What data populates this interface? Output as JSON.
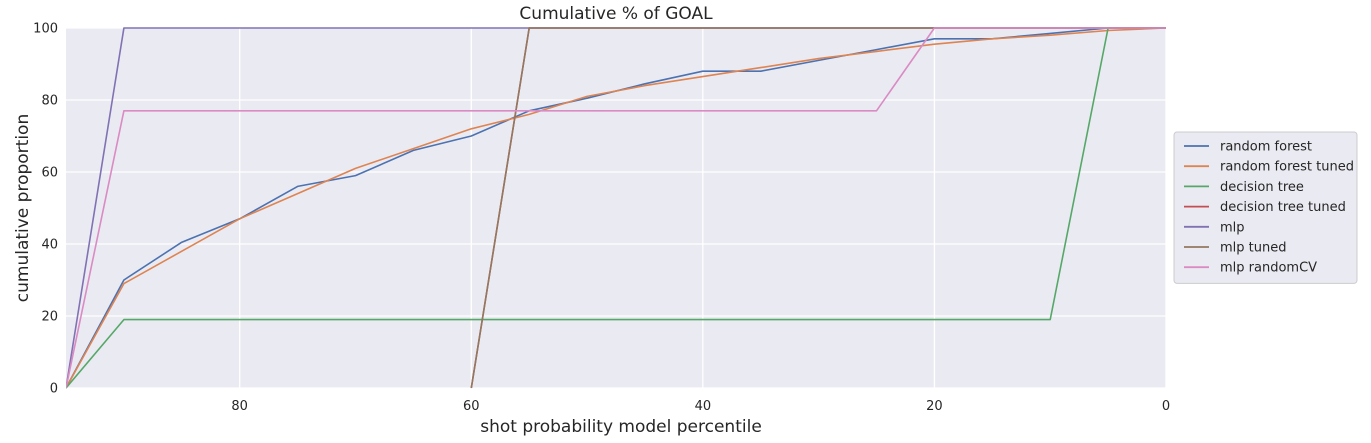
{
  "chart_data": {
    "type": "line",
    "title": "Cumulative % of GOAL",
    "xlabel": "shot probability model percentile",
    "ylabel": "cumulative proportion",
    "xlim": [
      95,
      0
    ],
    "ylim": [
      0,
      100
    ],
    "x_inverted": true,
    "grid": true,
    "legend_position": "outside-right",
    "xticks": [
      80,
      60,
      40,
      20,
      0
    ],
    "yticks": [
      0,
      20,
      40,
      60,
      80,
      100
    ],
    "background": "#eaeaf2",
    "series": [
      {
        "name": "random forest",
        "color": "#4c72b0",
        "points": [
          [
            95,
            0
          ],
          [
            90,
            30
          ],
          [
            85,
            40.5
          ],
          [
            80,
            47
          ],
          [
            75,
            56
          ],
          [
            70,
            59
          ],
          [
            65,
            66
          ],
          [
            60,
            70
          ],
          [
            55,
            77
          ],
          [
            50,
            80.5
          ],
          [
            45,
            84.5
          ],
          [
            40,
            88
          ],
          [
            35,
            88
          ],
          [
            30,
            91
          ],
          [
            25,
            94
          ],
          [
            20,
            97
          ],
          [
            15,
            97
          ],
          [
            10,
            98.5
          ],
          [
            5,
            100
          ],
          [
            0,
            100
          ]
        ]
      },
      {
        "name": "random forest tuned",
        "color": "#dd8452",
        "points": [
          [
            95,
            0
          ],
          [
            90,
            29
          ],
          [
            85,
            38
          ],
          [
            80,
            47
          ],
          [
            75,
            54
          ],
          [
            70,
            61
          ],
          [
            65,
            66.5
          ],
          [
            60,
            72
          ],
          [
            55,
            76
          ],
          [
            50,
            81
          ],
          [
            45,
            84
          ],
          [
            40,
            86.5
          ],
          [
            35,
            89
          ],
          [
            30,
            91.5
          ],
          [
            25,
            93.5
          ],
          [
            20,
            95.5
          ],
          [
            15,
            97
          ],
          [
            10,
            98
          ],
          [
            5,
            99.3
          ],
          [
            0,
            100
          ]
        ]
      },
      {
        "name": "decision tree",
        "color": "#55a868",
        "points": [
          [
            95,
            0
          ],
          [
            90,
            19
          ],
          [
            10,
            19
          ],
          [
            5,
            100
          ],
          [
            0,
            100
          ]
        ]
      },
      {
        "name": "decision tree tuned",
        "color": "#c44e52",
        "points": [
          [
            60,
            0
          ],
          [
            55,
            100
          ],
          [
            0,
            100
          ]
        ]
      },
      {
        "name": "mlp",
        "color": "#8172b3",
        "points": [
          [
            95,
            0
          ],
          [
            90,
            100
          ],
          [
            0,
            100
          ]
        ]
      },
      {
        "name": "mlp tuned",
        "color": "#937860",
        "points": [
          [
            60,
            0
          ],
          [
            55,
            100
          ],
          [
            0,
            100
          ]
        ]
      },
      {
        "name": "mlp randomCV",
        "color": "#da8bc3",
        "points": [
          [
            95,
            0
          ],
          [
            90,
            77
          ],
          [
            25,
            77
          ],
          [
            20,
            100
          ],
          [
            0,
            100
          ]
        ]
      }
    ]
  }
}
